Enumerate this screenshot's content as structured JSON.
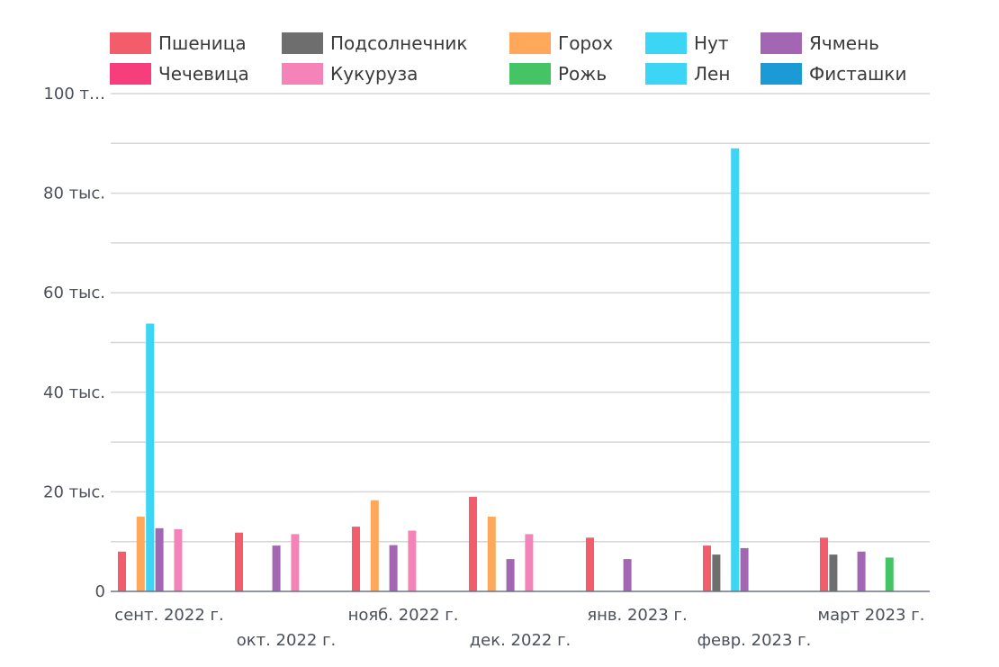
{
  "chart_data": {
    "type": "bar",
    "title": "",
    "xlabel": "",
    "ylabel": "",
    "ylim": [
      0,
      100000
    ],
    "grid": true,
    "legend_position": "top",
    "y_ticks": [
      {
        "value": 0,
        "label": "0"
      },
      {
        "value": 20000,
        "label": "20 тыс."
      },
      {
        "value": 40000,
        "label": "40 тыс."
      },
      {
        "value": 60000,
        "label": "60 тыс."
      },
      {
        "value": 80000,
        "label": "80 тыс."
      },
      {
        "value": 100000,
        "label": "100 т…"
      }
    ],
    "categories": [
      "сент. 2022 г.",
      "окт. 2022 г.",
      "нояб. 2022 г.",
      "дек. 2022 г.",
      "янв. 2023 г.",
      "февр. 2023 г.",
      "март 2023 г."
    ],
    "series": [
      {
        "name": "Пшеница",
        "color": "#f25c6b",
        "values": [
          8000,
          11800,
          13000,
          19000,
          10800,
          9200,
          10800
        ]
      },
      {
        "name": "Подсолнечник",
        "color": "#6e6e6e",
        "values": [
          0,
          0,
          0,
          0,
          0,
          7400,
          7400
        ]
      },
      {
        "name": "Горох",
        "color": "#ffa85c",
        "values": [
          15000,
          0,
          18300,
          15000,
          0,
          0,
          0
        ]
      },
      {
        "name": "Нут",
        "color": "#3dd5f5",
        "values": [
          53800,
          0,
          0,
          0,
          0,
          89000,
          0
        ]
      },
      {
        "name": "Ячмень",
        "color": "#a366b3",
        "values": [
          12700,
          9200,
          9300,
          6500,
          6500,
          8700,
          8000
        ]
      },
      {
        "name": "Чечевица",
        "color": "#f73e7d",
        "values": [
          0,
          0,
          0,
          0,
          0,
          0,
          0
        ]
      },
      {
        "name": "Кукуруза",
        "color": "#f484b8",
        "values": [
          12500,
          11500,
          12200,
          11500,
          0,
          0,
          0
        ]
      },
      {
        "name": "Рожь",
        "color": "#45c466",
        "values": [
          0,
          0,
          0,
          0,
          0,
          0,
          6800
        ]
      },
      {
        "name": "Лен",
        "color": "#3dd5f5",
        "values": [
          0,
          0,
          0,
          0,
          0,
          0,
          0
        ]
      },
      {
        "name": "Фисташки",
        "color": "#1c9ad6",
        "values": [
          0,
          0,
          0,
          0,
          0,
          0,
          0
        ]
      }
    ]
  }
}
